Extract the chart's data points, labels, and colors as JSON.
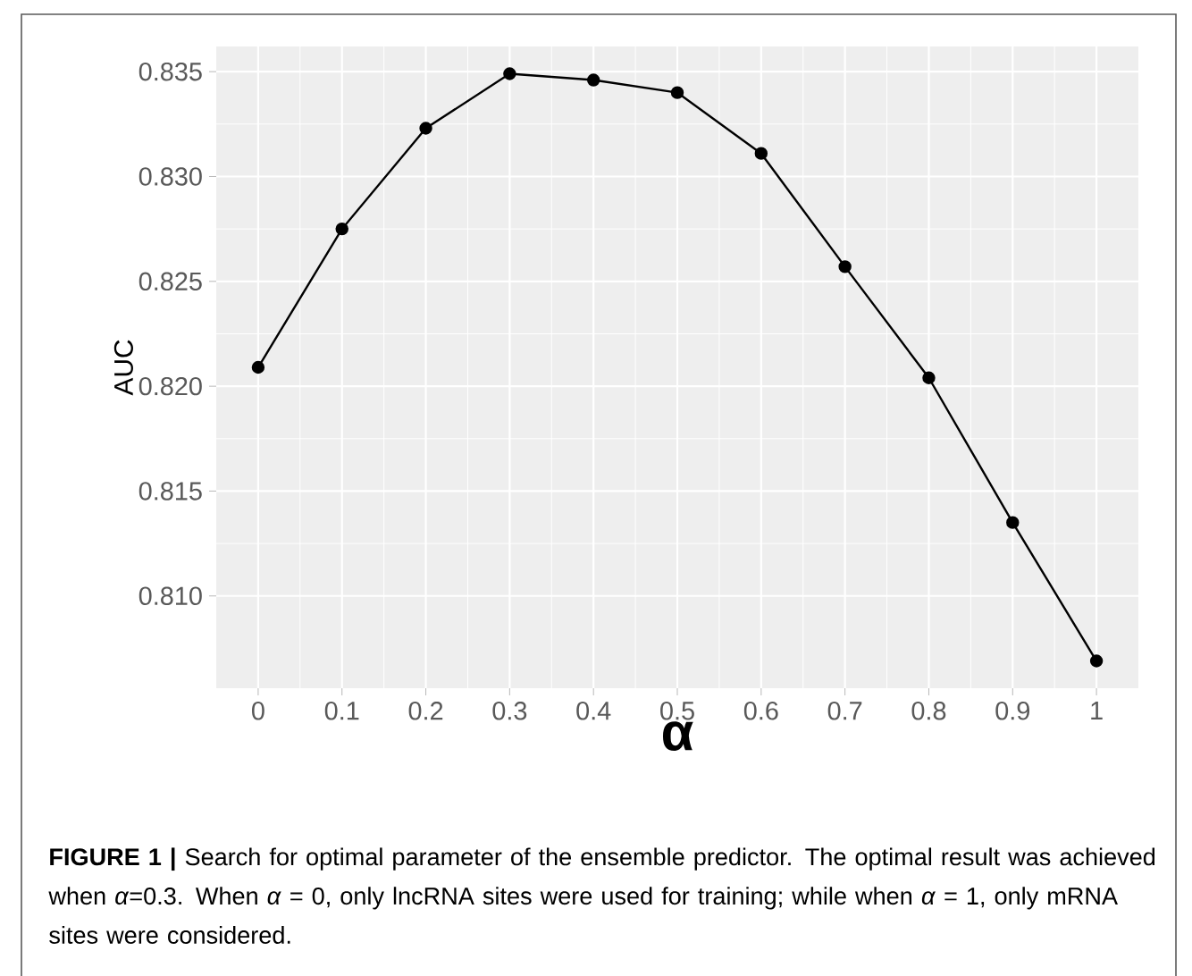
{
  "chart_data": {
    "type": "line",
    "xlabel": "α",
    "ylabel": "AUC",
    "x": [
      0,
      0.1,
      0.2,
      0.3,
      0.4,
      0.5,
      0.6,
      0.7,
      0.8,
      0.9,
      1
    ],
    "values": [
      0.8209,
      0.8275,
      0.8323,
      0.8349,
      0.8346,
      0.834,
      0.8311,
      0.8257,
      0.8204,
      0.8135,
      0.8069
    ],
    "color": "#000000",
    "marker": "circle",
    "grid": true,
    "xlim": [
      -0.05,
      1.05
    ],
    "ylim": [
      0.8056,
      0.8362
    ],
    "xticks": [
      0,
      0.1,
      0.2,
      0.3,
      0.4,
      0.5,
      0.6,
      0.7,
      0.8,
      0.9,
      1
    ],
    "yticks": [
      {
        "value": 0.81,
        "label": "0.810"
      },
      0.815,
      {
        "value": 0.82,
        "label": "0.820"
      },
      0.825,
      {
        "value": 0.83,
        "label": "0.830"
      },
      0.835
    ],
    "annotations": [
      "**FIGURE 1 |** Search for optimal parameter of the ensemble predictor. The optimal result was achieved when *α*=0.3. When *α* = 0, only lncRNA sites were used for training; while when *α* = 1, only mRNA sites were considered."
    ]
  }
}
